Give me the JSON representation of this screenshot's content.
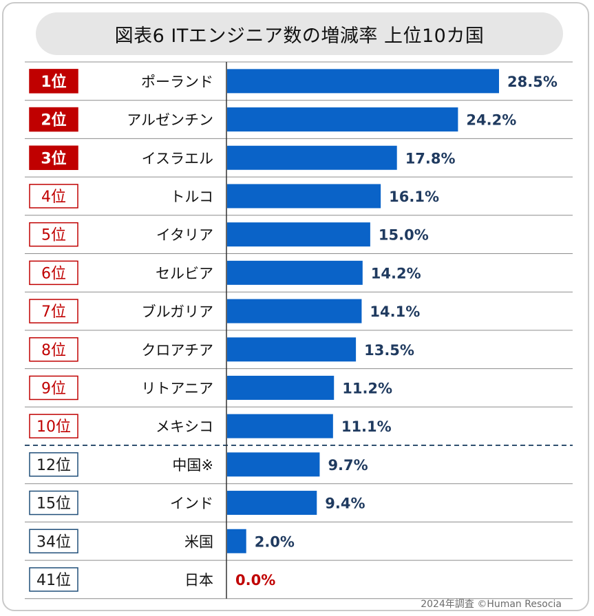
{
  "title": "図表6  ITエンジニア数の増減率  上位10カ国",
  "footer": "2024年調査 ©Human Resocia",
  "colors": {
    "bar": "#0a63c8",
    "top_rank_fill": "#c00000",
    "rank_border": "#c00000",
    "other_rank_border": "#1f4e79",
    "value_text": "#1f3a5f",
    "zero_value_text": "#c00000",
    "grid": "#8c8c8c",
    "divider": "#2f4f6f"
  },
  "chart_data": {
    "type": "bar",
    "orientation": "horizontal",
    "title": "図表6  ITエンジニア数の増減率  上位10カ国",
    "value_unit": "%",
    "xlim": [
      0,
      30
    ],
    "rows": [
      {
        "rank": "1位",
        "country": "ポーランド",
        "value": 28.5,
        "label": "28.5%",
        "style": "top"
      },
      {
        "rank": "2位",
        "country": "アルゼンチン",
        "value": 24.2,
        "label": "24.2%",
        "style": "top"
      },
      {
        "rank": "3位",
        "country": "イスラエル",
        "value": 17.8,
        "label": "17.8%",
        "style": "top"
      },
      {
        "rank": "4位",
        "country": "トルコ",
        "value": 16.1,
        "label": "16.1%",
        "style": "red"
      },
      {
        "rank": "5位",
        "country": "イタリア",
        "value": 15.0,
        "label": "15.0%",
        "style": "red"
      },
      {
        "rank": "6位",
        "country": "セルビア",
        "value": 14.2,
        "label": "14.2%",
        "style": "red"
      },
      {
        "rank": "7位",
        "country": "ブルガリア",
        "value": 14.1,
        "label": "14.1%",
        "style": "red"
      },
      {
        "rank": "8位",
        "country": "クロアチア",
        "value": 13.5,
        "label": "13.5%",
        "style": "red"
      },
      {
        "rank": "9位",
        "country": "リトアニア",
        "value": 11.2,
        "label": "11.2%",
        "style": "red"
      },
      {
        "rank": "10位",
        "country": "メキシコ",
        "value": 11.1,
        "label": "11.1%",
        "style": "red"
      },
      {
        "rank": "12位",
        "country": "中国※",
        "value": 9.7,
        "label": "9.7%",
        "style": "other"
      },
      {
        "rank": "15位",
        "country": "インド",
        "value": 9.4,
        "label": "9.4%",
        "style": "other"
      },
      {
        "rank": "34位",
        "country": "米国",
        "value": 2.0,
        "label": "2.0%",
        "style": "other"
      },
      {
        "rank": "41位",
        "country": "日本",
        "value": 0.0,
        "label": "0.0%",
        "style": "other"
      }
    ],
    "divider_after_row": 10
  }
}
